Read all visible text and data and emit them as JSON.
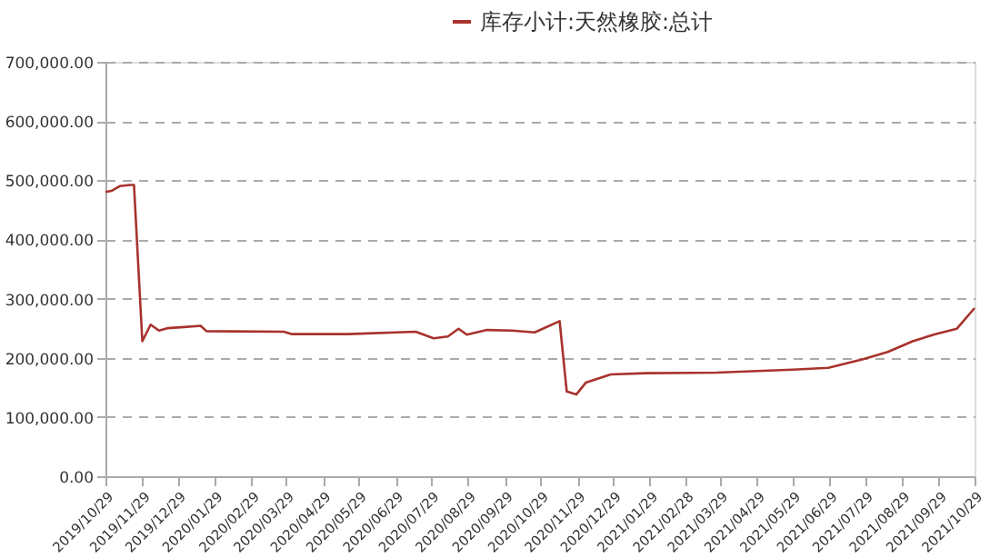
{
  "chart_data": {
    "type": "line",
    "x": [
      "2019-10-29",
      "2019-11-03",
      "2019-11-10",
      "2019-11-19",
      "2019-11-22",
      "2019-11-29",
      "2019-12-06",
      "2019-12-13",
      "2019-12-20",
      "2020-01-03",
      "2020-01-17",
      "2020-01-22",
      "2020-03-27",
      "2020-04-03",
      "2020-05-20",
      "2020-07-16",
      "2020-07-31",
      "2020-08-12",
      "2020-08-21",
      "2020-08-28",
      "2020-09-14",
      "2020-10-05",
      "2020-10-24",
      "2020-11-14",
      "2020-11-20",
      "2020-11-28",
      "2020-12-06",
      "2020-12-27",
      "2021-01-26",
      "2021-03-26",
      "2021-05-29",
      "2021-06-28",
      "2021-07-28",
      "2021-08-17",
      "2021-09-07",
      "2021-09-26",
      "2021-10-14",
      "2021-10-29"
    ],
    "series": [
      {
        "name": "库存小计:天然橡胶:总计",
        "color": "#a8322d",
        "values": [
          480000,
          482000,
          490000,
          492000,
          492000,
          228000,
          256000,
          246000,
          250000,
          252000,
          254000,
          245000,
          244000,
          240000,
          240000,
          244000,
          233000,
          236000,
          249000,
          239000,
          247000,
          246000,
          243000,
          262000,
          143000,
          138000,
          158000,
          172000,
          174000,
          175000,
          180000,
          183000,
          198000,
          210000,
          228000,
          240000,
          249000,
          284000
        ]
      }
    ],
    "xlim": [
      "2019-10-29",
      "2021-10-29"
    ],
    "xticks": [
      {
        "value": "2019-10-29",
        "label": "2019/10/29"
      },
      {
        "value": "2019-11-29",
        "label": "2019/11/29"
      },
      {
        "value": "2019-12-29",
        "label": "2019/12/29"
      },
      {
        "value": "2020-01-29",
        "label": "2020/01/29"
      },
      {
        "value": "2020-02-29",
        "label": "2020/02/29"
      },
      {
        "value": "2020-03-29",
        "label": "2020/03/29"
      },
      {
        "value": "2020-04-29",
        "label": "2020/04/29"
      },
      {
        "value": "2020-05-29",
        "label": "2020/05/29"
      },
      {
        "value": "2020-06-29",
        "label": "2020/06/29"
      },
      {
        "value": "2020-07-29",
        "label": "2020/07/29"
      },
      {
        "value": "2020-08-29",
        "label": "2020/08/29"
      },
      {
        "value": "2020-09-29",
        "label": "2020/09/29"
      },
      {
        "value": "2020-10-29",
        "label": "2020/10/29"
      },
      {
        "value": "2020-11-29",
        "label": "2020/11/29"
      },
      {
        "value": "2020-12-29",
        "label": "2020/12/29"
      },
      {
        "value": "2021-01-29",
        "label": "2021/01/29"
      },
      {
        "value": "2021-02-28",
        "label": "2021/02/28"
      },
      {
        "value": "2021-03-29",
        "label": "2021/03/29"
      },
      {
        "value": "2021-04-29",
        "label": "2021/04/29"
      },
      {
        "value": "2021-05-29",
        "label": "2021/05/29"
      },
      {
        "value": "2021-06-29",
        "label": "2021/06/29"
      },
      {
        "value": "2021-07-29",
        "label": "2021/07/29"
      },
      {
        "value": "2021-08-29",
        "label": "2021/08/29"
      },
      {
        "value": "2021-09-29",
        "label": "2021/09/29"
      },
      {
        "value": "2021-10-29",
        "label": "2021/10/29"
      }
    ],
    "ylim": [
      0,
      700000
    ],
    "yticks": [
      {
        "value": 0,
        "label": "0.00"
      },
      {
        "value": 100000,
        "label": "100,000.00"
      },
      {
        "value": 200000,
        "label": "200,000.00"
      },
      {
        "value": 300000,
        "label": "300,000.00"
      },
      {
        "value": 400000,
        "label": "400,000.00"
      },
      {
        "value": 500000,
        "label": "500,000.00"
      },
      {
        "value": 600000,
        "label": "600,000.00"
      },
      {
        "value": 700000,
        "label": "700,000.00"
      }
    ],
    "grid": "y",
    "legend": "top",
    "marker": "none",
    "line_style": "solid"
  }
}
